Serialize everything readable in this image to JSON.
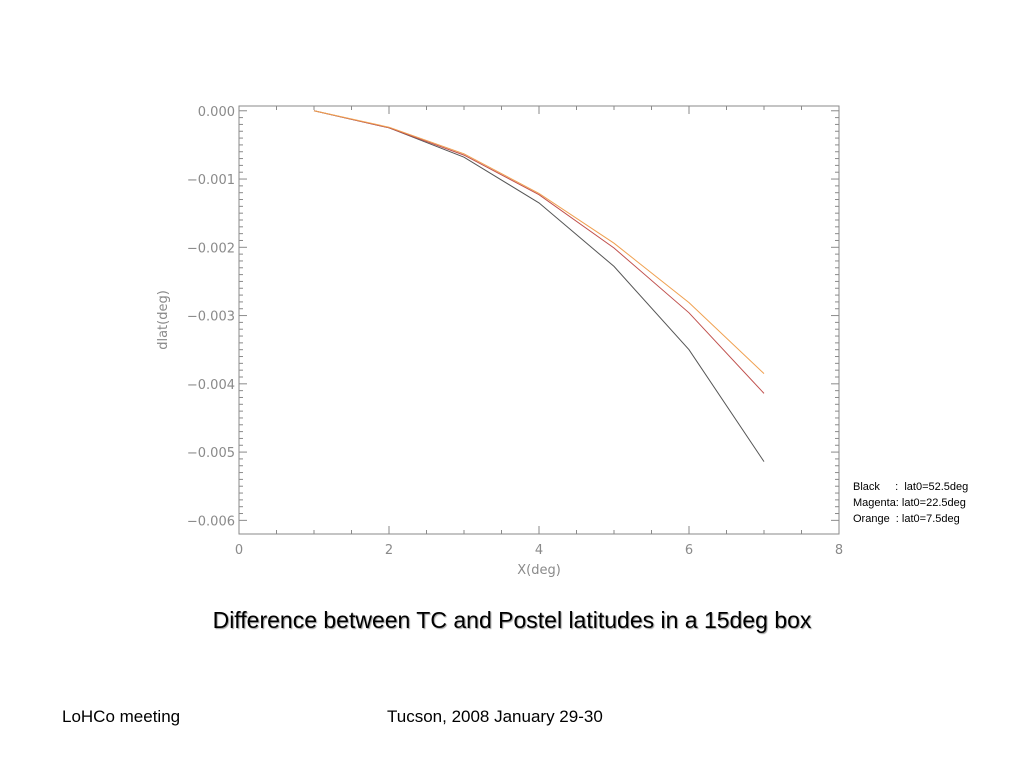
{
  "chart_data": {
    "type": "line",
    "xlabel": "X(deg)",
    "ylabel": "dlat(deg)",
    "xlim": [
      0,
      8
    ],
    "ylim": [
      -0.0062,
      7e-05
    ],
    "x_ticks": [
      0,
      2,
      4,
      6,
      8
    ],
    "y_ticks": [
      0.0,
      -0.001,
      -0.002,
      -0.003,
      -0.004,
      -0.005,
      -0.006
    ],
    "x_tick_labels": [
      "0",
      "2",
      "4",
      "6",
      "8"
    ],
    "y_tick_labels": [
      "0.000",
      "−0.001",
      "−0.002",
      "−0.003",
      "−0.004",
      "−0.005",
      "−0.006"
    ],
    "grid": false,
    "legend_lines": [
      "Black     :  lat0=52.5deg",
      "Magenta: lat0=22.5deg",
      "Orange  : lat0=7.5deg"
    ],
    "series": [
      {
        "color": "#555555",
        "x": [
          1,
          2,
          3,
          4,
          5,
          6,
          7
        ],
        "y": [
          0.0,
          -0.00025,
          -0.00068,
          -0.00135,
          -0.00228,
          -0.0035,
          -0.00514
        ]
      },
      {
        "color": "#c0504d",
        "x": [
          1,
          2,
          3,
          4,
          5,
          6,
          7
        ],
        "y": [
          0.0,
          -0.00025,
          -0.00065,
          -0.00123,
          -0.00201,
          -0.00296,
          -0.00414
        ]
      },
      {
        "color": "#f0a050",
        "x": [
          1,
          2,
          3,
          4,
          5,
          6,
          7
        ],
        "y": [
          0.0,
          -0.00024,
          -0.00063,
          -0.00121,
          -0.00194,
          -0.00281,
          -0.00385
        ]
      }
    ]
  },
  "caption": "Difference between TC and Postel latitudes in a 15deg box",
  "footer": {
    "left": "LoHCo meeting",
    "center": "Tucson, 2008 January 29-30"
  }
}
